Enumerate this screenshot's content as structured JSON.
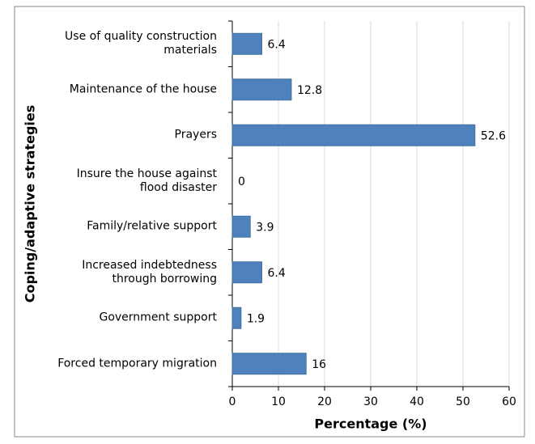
{
  "chart_data": {
    "type": "hbar",
    "xlabel": "Percentage (%)",
    "ylabel": "Coping/adaptive strategies",
    "categories": [
      "Use of quality construction\nmaterials",
      "Maintenance of the house",
      "Prayers",
      "Insure the house against\nflood disaster",
      "Family/relative support",
      "Increased indebtedness\nthrough borrowing",
      "Government support",
      "Forced temporary migration"
    ],
    "values": [
      6.4,
      12.8,
      52.6,
      0,
      3.9,
      6.4,
      1.9,
      16
    ],
    "color": "#4f81bd",
    "xlim": [
      0,
      60
    ],
    "xticks": [
      0,
      10,
      20,
      30,
      40,
      50,
      60
    ],
    "grid": true
  }
}
